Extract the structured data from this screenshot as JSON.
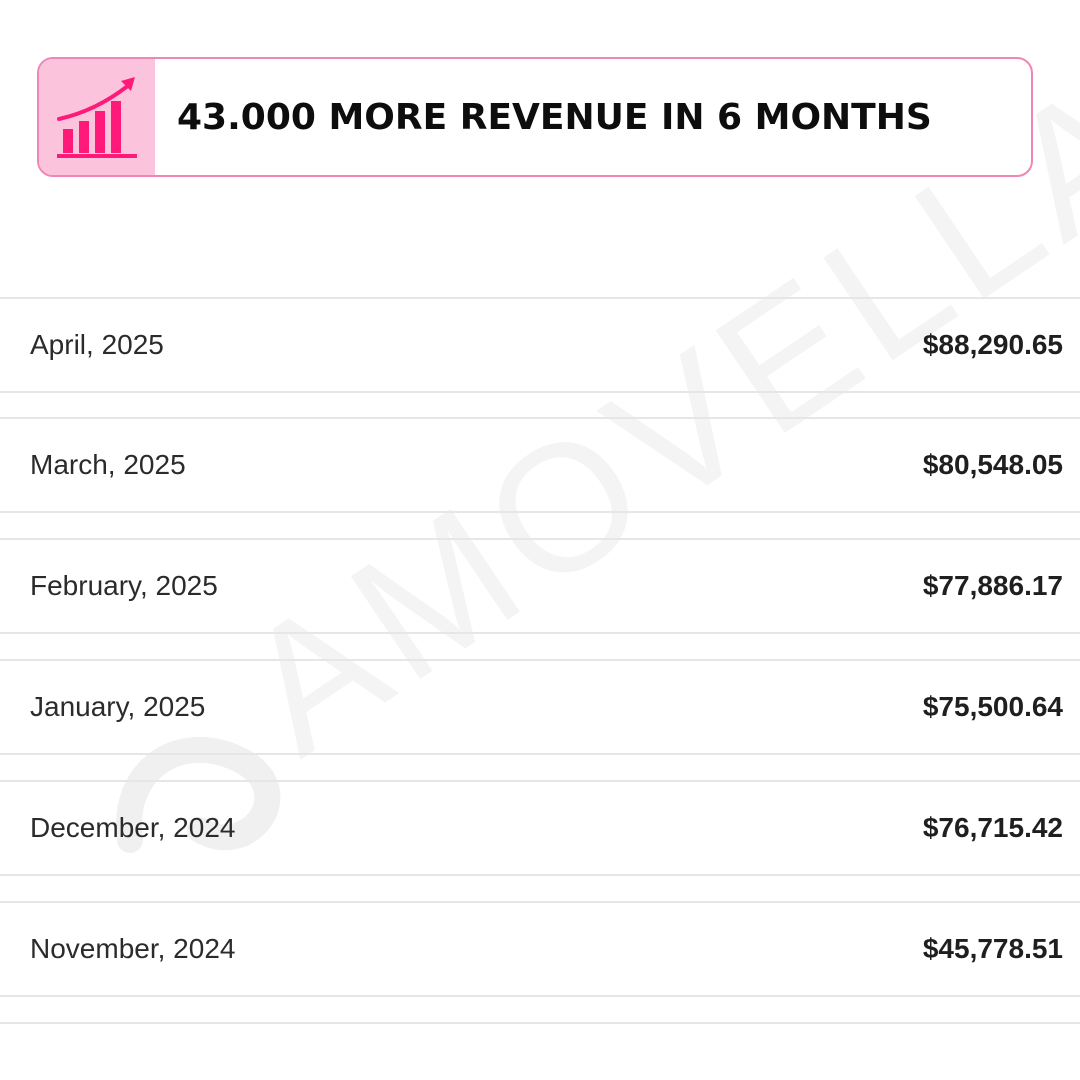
{
  "banner": {
    "title": "43.000 MORE REVENUE IN 6 MONTHS",
    "icon": "growth-chart-icon",
    "accent_color": "#ff1a7a",
    "icon_bg_color": "#fcc4dc",
    "border_color": "#f186b6"
  },
  "watermark": {
    "text": "AMOVELLA",
    "logo": "amovella-logo-mark"
  },
  "revenue_rows": [
    {
      "month": "April, 2025",
      "amount": "$88,290.65"
    },
    {
      "month": "March, 2025",
      "amount": "$80,548.05"
    },
    {
      "month": "February, 2025",
      "amount": "$77,886.17"
    },
    {
      "month": "January, 2025",
      "amount": "$75,500.64"
    },
    {
      "month": "December, 2024",
      "amount": "$76,715.42"
    },
    {
      "month": "November, 2024",
      "amount": "$45,778.51"
    }
  ]
}
